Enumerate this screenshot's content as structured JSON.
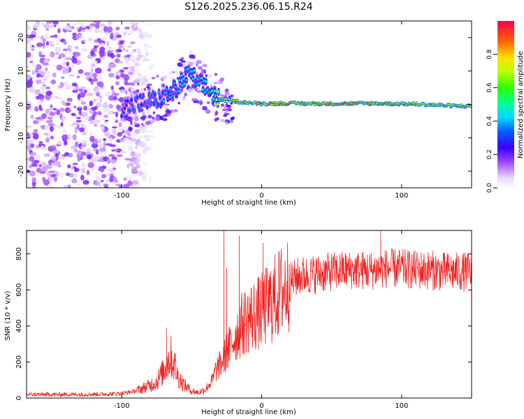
{
  "figure_title": "S126.2025.236.06.15.R24",
  "colors": {
    "line": "#ee2222",
    "frame": "#000000"
  },
  "chart_data": [
    {
      "type": "heatmap",
      "title": "S126.2025.236.06.15.R24",
      "xlabel": "Height of straight line (km)",
      "ylabel": "Frequency (Hz)",
      "xlim": [
        -168,
        150
      ],
      "ylim": [
        -25,
        25
      ],
      "xticks": [
        -100,
        0,
        100
      ],
      "xtick_labels": [
        "-100",
        "0",
        "100"
      ],
      "yticks": [
        -20,
        -10,
        0,
        10,
        20
      ],
      "ytick_labels": [
        "-20",
        "-10",
        "0",
        "10",
        "20"
      ],
      "colorbar": {
        "label": "Normalized spectral amplitude",
        "range": [
          0,
          1
        ],
        "ticks": [
          0.0,
          0.2,
          0.4,
          0.6,
          0.8
        ],
        "tick_labels": [
          "0.0",
          "0.2",
          "0.4",
          "0.6",
          "0.8"
        ]
      },
      "ridge": {
        "x": [
          -100,
          -90,
          -80,
          -70,
          -60,
          -55,
          -50,
          -45,
          -40,
          -35,
          -30,
          -20,
          -10,
          0,
          20,
          50,
          80,
          110,
          140,
          150
        ],
        "frequency": [
          -1,
          0,
          1,
          2,
          5,
          8,
          9,
          6,
          5,
          3,
          1.5,
          1,
          0.5,
          0.2,
          0.3,
          0.2,
          0.3,
          0.1,
          -0.5,
          -0.5
        ],
        "peak_amplitude": [
          0.3,
          0.35,
          0.35,
          0.4,
          0.45,
          0.5,
          0.5,
          0.5,
          0.55,
          0.6,
          0.75,
          0.9,
          0.95,
          0.95,
          0.97,
          0.98,
          0.97,
          0.95,
          0.9,
          0.85
        ]
      },
      "noise_region": {
        "x_range": [
          -168,
          -100
        ],
        "frequency_range": [
          -25,
          25
        ],
        "typical_amplitude": 0.1
      }
    },
    {
      "type": "line",
      "xlabel": "Height of straight line (km)",
      "ylabel": "SNR (10 * v/v)",
      "xlim": [
        -168,
        150
      ],
      "ylim": [
        0,
        930
      ],
      "xticks": [
        -100,
        0,
        100
      ],
      "xtick_labels": [
        "-100",
        "0",
        "100"
      ],
      "yticks": [
        0,
        200,
        400,
        600,
        800
      ],
      "ytick_labels": [
        "0",
        "200",
        "400",
        "600",
        "800"
      ],
      "series": [
        {
          "name": "SNR",
          "x": [
            -168,
            -150,
            -130,
            -110,
            -100,
            -90,
            -85,
            -80,
            -75,
            -70,
            -67,
            -65,
            -62,
            -60,
            -57,
            -55,
            -50,
            -45,
            -40,
            -35,
            -33,
            -30,
            -27,
            -25,
            -22,
            -20,
            -17,
            -15,
            -10,
            -5,
            0,
            5,
            10,
            15,
            20,
            25,
            30,
            40,
            50,
            60,
            70,
            80,
            90,
            100,
            110,
            120,
            130,
            140,
            150
          ],
          "values": [
            20,
            20,
            20,
            22,
            25,
            40,
            55,
            70,
            90,
            150,
            200,
            230,
            180,
            120,
            90,
            70,
            40,
            30,
            50,
            100,
            150,
            180,
            220,
            260,
            290,
            330,
            370,
            400,
            440,
            460,
            480,
            520,
            560,
            600,
            640,
            670,
            680,
            690,
            700,
            710,
            710,
            710,
            720,
            720,
            710,
            710,
            700,
            700,
            700
          ],
          "spikes": [
            {
              "x": -68,
              "y": 390
            },
            {
              "x": -27,
              "y": 930
            },
            {
              "x": -25,
              "y": 720
            },
            {
              "x": -16,
              "y": 900
            },
            {
              "x": 1,
              "y": 860
            },
            {
              "x": 85,
              "y": 930
            }
          ]
        }
      ]
    }
  ]
}
